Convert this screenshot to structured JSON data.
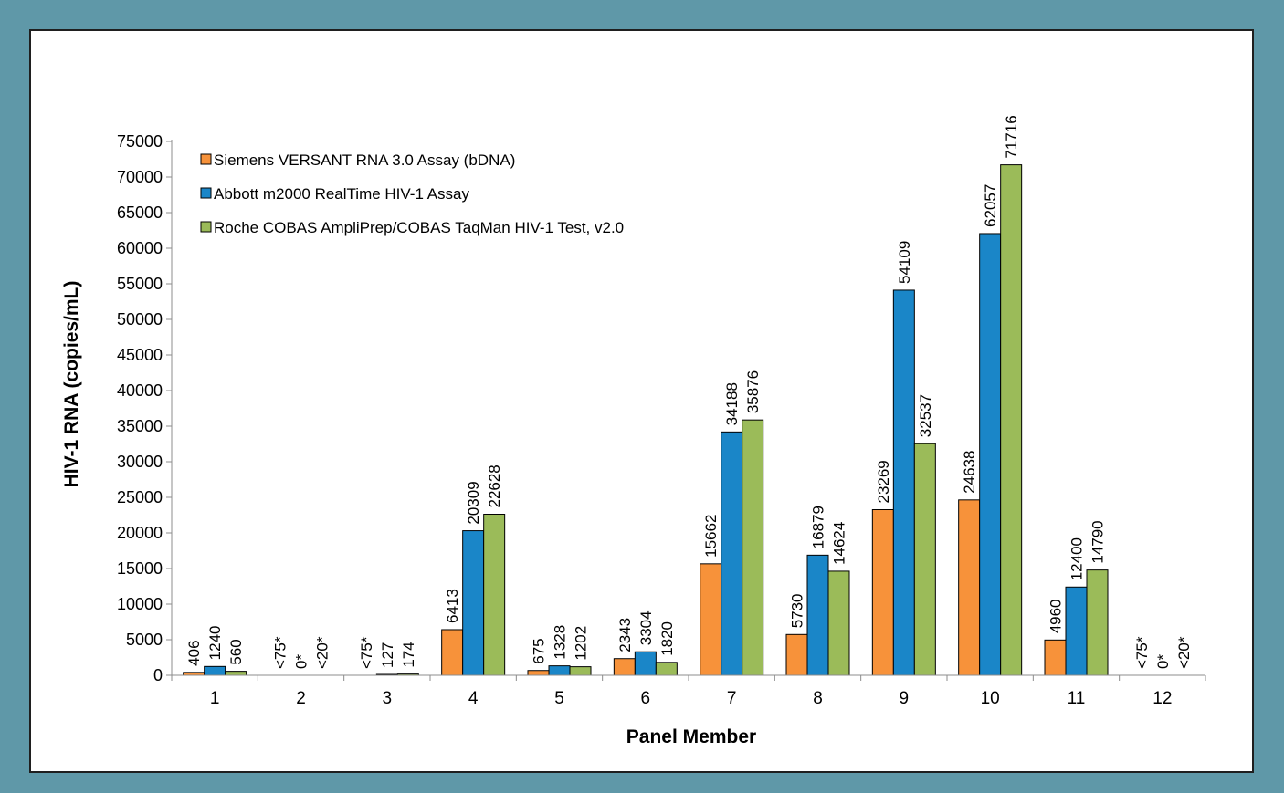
{
  "chart_data": {
    "type": "bar",
    "title": "",
    "xlabel": "Panel Member",
    "ylabel": "HIV-1 RNA (copies/mL)",
    "ylim": [
      0,
      75000
    ],
    "yticks": [
      0,
      5000,
      10000,
      15000,
      20000,
      25000,
      30000,
      35000,
      40000,
      45000,
      50000,
      55000,
      60000,
      65000,
      70000,
      75000
    ],
    "grid": false,
    "legend": "top-left",
    "categories": [
      "1",
      "2",
      "3",
      "4",
      "5",
      "6",
      "7",
      "8",
      "9",
      "10",
      "11",
      "12"
    ],
    "series": [
      {
        "name": "Siemens VERSANT RNA 3.0 Assay (bDNA)",
        "color": "#f7923a",
        "values": [
          406,
          0,
          0,
          6413,
          675,
          2343,
          15662,
          5730,
          23269,
          24638,
          4960,
          0
        ],
        "labels": [
          "406",
          "<75*",
          "<75*",
          "6413",
          "675",
          "2343",
          "15662",
          "5730",
          "23269",
          "24638",
          "4960",
          "<75*"
        ]
      },
      {
        "name": "Abbott m2000 RealTime HIV-1 Assay",
        "color": "#1a86c8",
        "values": [
          1240,
          0,
          127,
          20309,
          1328,
          3304,
          34188,
          16879,
          54109,
          62057,
          12400,
          0
        ],
        "labels": [
          "1240",
          "0*",
          "127",
          "20309",
          "1328",
          "3304",
          "34188",
          "16879",
          "54109",
          "62057",
          "12400",
          "0*"
        ]
      },
      {
        "name": "Roche COBAS AmpliPrep/COBAS TaqMan HIV-1 Test, v2.0",
        "color": "#9bbb59",
        "values": [
          560,
          0,
          174,
          22628,
          1202,
          1820,
          35876,
          14624,
          32537,
          71716,
          14790,
          0
        ],
        "labels": [
          "560",
          "<20*",
          "174",
          "22628",
          "1202",
          "1820",
          "35876",
          "14624",
          "32537",
          "71716",
          "14790",
          "<20*"
        ]
      }
    ]
  }
}
